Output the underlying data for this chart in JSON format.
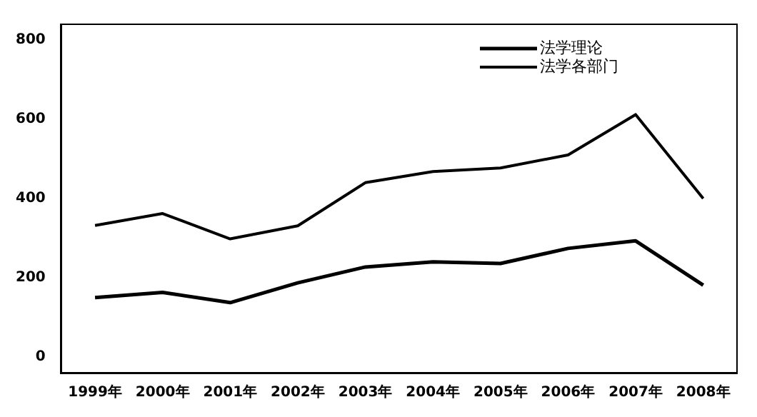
{
  "chart_data": {
    "type": "line",
    "categories": [
      "1999年",
      "2000年",
      "2001年",
      "2002年",
      "2003年",
      "2004年",
      "2005年",
      "2006年",
      "2007年",
      "2008年"
    ],
    "series": [
      {
        "name": "法学理论",
        "color": "#000000",
        "values": [
          150,
          163,
          137,
          187,
          227,
          240,
          236,
          274,
          293,
          181
        ]
      },
      {
        "name": "法学各部门",
        "color": "#000000",
        "values": [
          332,
          362,
          298,
          331,
          440,
          468,
          477,
          510,
          612,
          400
        ]
      }
    ],
    "ylim": [
      -40,
      840
    ],
    "yticks": [
      0,
      200,
      400,
      600,
      800
    ],
    "grid": false,
    "legend": "top right",
    "marker": "none",
    "line_style": "solid"
  }
}
